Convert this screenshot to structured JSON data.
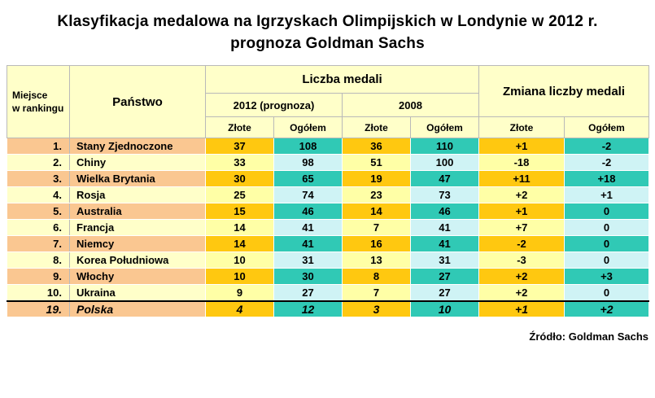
{
  "title": {
    "line1": "Klasyfikacja medalowa na Igrzyskach Olimpijskich w Londynie w 2012 r.",
    "line2": "prognoza Goldman Sachs"
  },
  "table": {
    "headers": {
      "rank_line1": "Miejsce",
      "rank_line2": "w rankingu",
      "country": "Państwo",
      "medals_group": "Liczba medali",
      "year_2012": "2012 (prognoza)",
      "year_2008": "2008",
      "change_group": "Zmiana liczby medali",
      "gold": "Złote",
      "total": "Ogółem"
    },
    "rows": [
      {
        "rank": "1.",
        "country": "Stany Zjednoczone",
        "values": [
          "37",
          "108",
          "36",
          "110",
          "+1",
          "-2"
        ],
        "highlight": false
      },
      {
        "rank": "2.",
        "country": "Chiny",
        "values": [
          "33",
          "98",
          "51",
          "100",
          "-18",
          "-2"
        ],
        "highlight": false
      },
      {
        "rank": "3.",
        "country": "Wielka Brytania",
        "values": [
          "30",
          "65",
          "19",
          "47",
          "+11",
          "+18"
        ],
        "highlight": false
      },
      {
        "rank": "4.",
        "country": "Rosja",
        "values": [
          "25",
          "74",
          "23",
          "73",
          "+2",
          "+1"
        ],
        "highlight": false
      },
      {
        "rank": "5.",
        "country": "Australia",
        "values": [
          "15",
          "46",
          "14",
          "46",
          "+1",
          "0"
        ],
        "highlight": false
      },
      {
        "rank": "6.",
        "country": "Francja",
        "values": [
          "14",
          "41",
          "7",
          "41",
          "+7",
          "0"
        ],
        "highlight": false
      },
      {
        "rank": "7.",
        "country": "Niemcy",
        "values": [
          "14",
          "41",
          "16",
          "41",
          "-2",
          "0"
        ],
        "highlight": false
      },
      {
        "rank": "8.",
        "country": "Korea Południowa",
        "values": [
          "10",
          "31",
          "13",
          "31",
          "-3",
          "0"
        ],
        "highlight": false
      },
      {
        "rank": "9.",
        "country": "Włochy",
        "values": [
          "10",
          "30",
          "8",
          "27",
          "+2",
          "+3"
        ],
        "highlight": false
      },
      {
        "rank": "10.",
        "country": "Ukraina",
        "values": [
          "9",
          "27",
          "7",
          "27",
          "+2",
          "0"
        ],
        "highlight": false
      },
      {
        "rank": "19.",
        "country": "Polska",
        "values": [
          "4",
          "12",
          "3",
          "10",
          "+1",
          "+2"
        ],
        "highlight": true
      }
    ]
  },
  "footer": {
    "source": "Źródło: Goldman Sachs"
  },
  "colors": {
    "header_bg": "#FFFFC9",
    "pale_yellow": "#FFFFA6",
    "pale_cyan": "#CFF3F5",
    "peach": "#FAC791",
    "gold": "#FFC810",
    "teal": "#30C9B5",
    "grid_gray": "#B9B9B9"
  },
  "chart_data": {
    "type": "table",
    "title": "Klasyfikacja medalowa na Igrzyskach Olimpijskich w Londynie w 2012 r. — prognoza Goldman Sachs",
    "columns": [
      "Miejsce w rankingu",
      "Państwo",
      "Złote 2012 (prognoza)",
      "Ogółem 2012 (prognoza)",
      "Złote 2008",
      "Ogółem 2008",
      "Zmiana liczby medali Złote",
      "Zmiana liczby medali Ogółem"
    ],
    "rows": [
      [
        "1.",
        "Stany Zjednoczone",
        37,
        108,
        36,
        110,
        "+1",
        "-2"
      ],
      [
        "2.",
        "Chiny",
        33,
        98,
        51,
        100,
        "-18",
        "-2"
      ],
      [
        "3.",
        "Wielka Brytania",
        30,
        65,
        19,
        47,
        "+11",
        "+18"
      ],
      [
        "4.",
        "Rosja",
        25,
        74,
        23,
        73,
        "+2",
        "+1"
      ],
      [
        "5.",
        "Australia",
        15,
        46,
        14,
        46,
        "+1",
        "0"
      ],
      [
        "6.",
        "Francja",
        14,
        41,
        7,
        41,
        "+7",
        "0"
      ],
      [
        "7.",
        "Niemcy",
        14,
        41,
        16,
        41,
        "-2",
        "0"
      ],
      [
        "8.",
        "Korea Południowa",
        10,
        31,
        13,
        31,
        "-3",
        "0"
      ],
      [
        "9.",
        "Włochy",
        10,
        30,
        8,
        27,
        "+2",
        "+3"
      ],
      [
        "10.",
        "Ukraina",
        9,
        27,
        7,
        27,
        "+2",
        "0"
      ],
      [
        "19.",
        "Polska",
        4,
        12,
        3,
        10,
        "+1",
        "+2"
      ]
    ],
    "source": "Źródło: Goldman Sachs"
  }
}
